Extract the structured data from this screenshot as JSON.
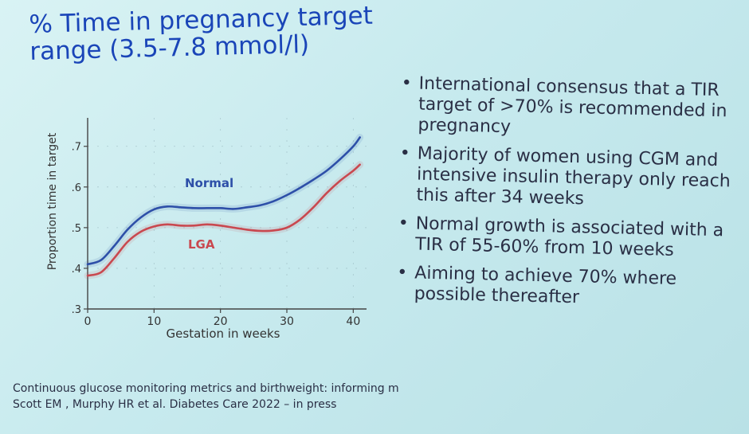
{
  "slide": {
    "title_lines": [
      "% Time in pregnancy target",
      "range (3.5-7.8 mmol/l)"
    ],
    "bullets": [
      "International consensus that a TIR target of >70% is recommended in pregnancy",
      "Majority of women using CGM and intensive insulin therapy only reach this after 34 weeks",
      "Normal growth is associated with a TIR of 55-60% from 10 weeks",
      "Aiming to achieve 70% where possible thereafter"
    ],
    "footnote_lines": [
      "Continuous glucose monitoring metrics and birthweight: informing m",
      "Scott EM , Murphy HR et al. Diabetes Care 2022 – in press"
    ]
  },
  "chart_data": {
    "type": "line",
    "xlabel": "Gestation in weeks",
    "ylabel": "Proportion time in target",
    "xlim": [
      0,
      42
    ],
    "ylim": [
      0.3,
      0.77
    ],
    "xticks": [
      0,
      10,
      20,
      30,
      40
    ],
    "xtick_labels": [
      "0",
      "10",
      "20",
      "30",
      "40"
    ],
    "yticks": [
      0.3,
      0.4,
      0.5,
      0.6,
      0.7
    ],
    "ytick_labels": [
      ".3",
      ".4",
      ".5",
      ".6",
      ".7"
    ],
    "grid": true,
    "series": [
      {
        "name": "Normal",
        "color": "#2d4fa8",
        "x": [
          0,
          2,
          4,
          6,
          8,
          10,
          12,
          14,
          16,
          18,
          20,
          22,
          24,
          26,
          28,
          30,
          32,
          34,
          36,
          38,
          40,
          41
        ],
        "y": [
          0.41,
          0.42,
          0.455,
          0.495,
          0.525,
          0.545,
          0.552,
          0.55,
          0.548,
          0.548,
          0.548,
          0.546,
          0.55,
          0.555,
          0.565,
          0.58,
          0.598,
          0.618,
          0.64,
          0.668,
          0.7,
          0.722
        ]
      },
      {
        "name": "LGA",
        "color": "#c9484f",
        "x": [
          0,
          2,
          4,
          6,
          8,
          10,
          12,
          14,
          16,
          18,
          20,
          22,
          24,
          26,
          28,
          30,
          32,
          34,
          36,
          38,
          40,
          41
        ],
        "y": [
          0.382,
          0.39,
          0.425,
          0.465,
          0.49,
          0.503,
          0.508,
          0.505,
          0.505,
          0.508,
          0.505,
          0.5,
          0.495,
          0.492,
          0.493,
          0.5,
          0.52,
          0.55,
          0.585,
          0.615,
          0.64,
          0.655
        ]
      }
    ]
  }
}
